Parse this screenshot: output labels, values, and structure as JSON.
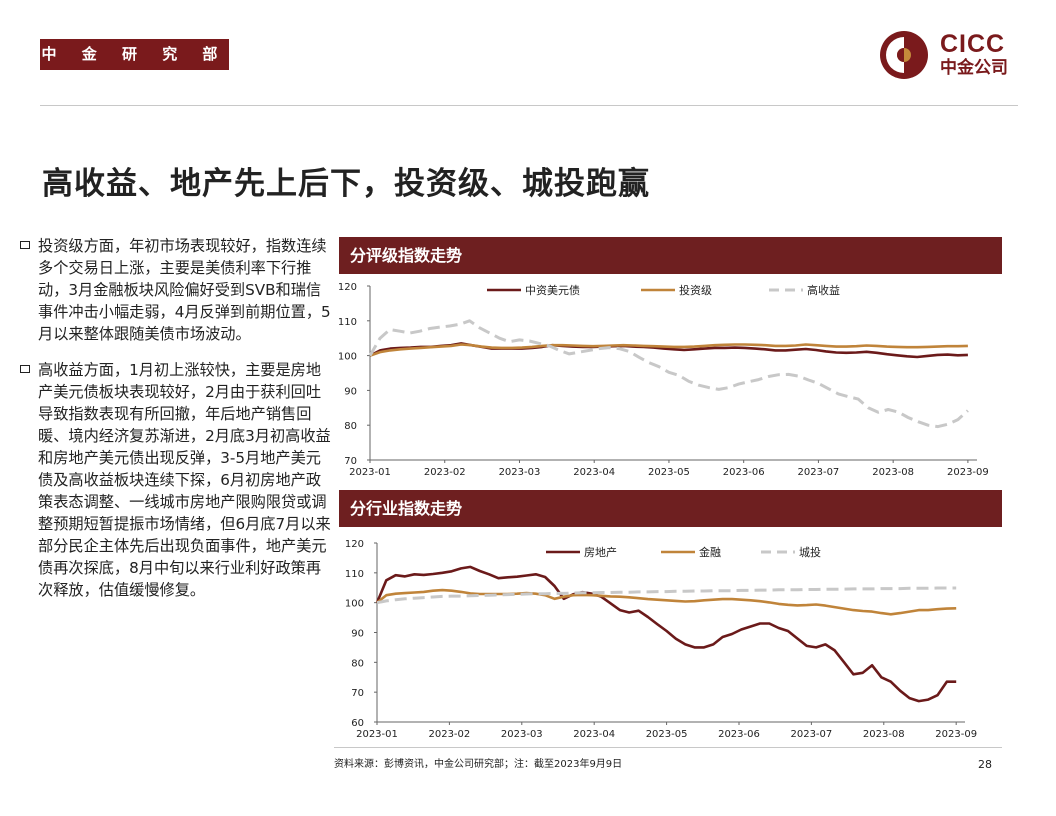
{
  "header": {
    "dept_label": "中 金 研 究 部",
    "brand_en": "CICC",
    "brand_cn": "中金公司"
  },
  "slide_title": "高收益、地产先上后下，投资级、城投跑赢",
  "bullets": [
    "投资级方面，年初市场表现较好，指数连续多个交易日上涨，主要是美债利率下行推动，3月金融板块风险偏好受到SVB和瑞信事件冲击小幅走弱，4月反弹到前期位置，5月以来整体跟随美债市场波动。",
    "高收益方面，1月初上涨较快，主要是房地产美元债板块表现较好，2月由于获利回吐导致指数表现有所回撤，年后地产销售回暖、境内经济复苏渐进，2月底3月初高收益和房地产美元债出现反弹，3-5月地产美元债及高收益板块连续下探，6月初房地产政策表态调整、一线城市房地产限购限贷或调整预期短暂提振市场情绪，但6月底7月以来部分民企主体先后出现负面事件，地产美元债再次探底，8月中旬以来行业利好政策再次释放，估值缓慢修复。"
  ],
  "panels": {
    "rating_title": "分评级指数走势",
    "industry_title": "分行业指数走势"
  },
  "chart_data": [
    {
      "type": "line",
      "x_tick_labels": [
        "2023-01",
        "2023-02",
        "2023-03",
        "2023-04",
        "2023-05",
        "2023-06",
        "2023-07",
        "2023-08",
        "2023-09"
      ],
      "ylim": [
        70,
        120
      ],
      "y_ticks": [
        70,
        80,
        90,
        100,
        110,
        120
      ],
      "legend_position": "top",
      "grid": false,
      "series": [
        {
          "name": "中资美元债",
          "color": "#6b1a1a",
          "dash": "solid",
          "values": [
            100,
            101.5,
            102,
            102.2,
            102.3,
            102.5,
            102.5,
            102.8,
            103,
            103.5,
            103,
            102.5,
            102,
            102,
            102,
            102,
            102.2,
            102.5,
            103,
            102.8,
            102.6,
            102.5,
            102.5,
            102.6,
            102.7,
            102.8,
            102.6,
            102.5,
            102.3,
            102,
            101.8,
            101.6,
            101.8,
            102,
            102.2,
            102.2,
            102.3,
            102.2,
            102,
            101.8,
            101.5,
            101.5,
            101.7,
            101.9,
            101.6,
            101.2,
            100.9,
            100.8,
            100.9,
            101.1,
            100.8,
            100.4,
            100.1,
            99.8,
            99.6,
            99.9,
            100.2,
            100.3,
            100.1,
            100.2
          ]
        },
        {
          "name": "投资级",
          "color": "#c0843a",
          "dash": "solid",
          "values": [
            100,
            101,
            101.5,
            101.8,
            102,
            102.2,
            102.4,
            102.6,
            102.8,
            103.2,
            103,
            102.6,
            102.3,
            102.2,
            102.2,
            102.3,
            102.5,
            102.8,
            103,
            103,
            102.9,
            102.8,
            102.7,
            102.8,
            102.9,
            103,
            102.9,
            102.8,
            102.7,
            102.6,
            102.5,
            102.5,
            102.6,
            102.8,
            103,
            103.1,
            103.2,
            103.2,
            103.1,
            103,
            102.8,
            102.8,
            102.9,
            103.2,
            103,
            102.8,
            102.6,
            102.6,
            102.7,
            102.9,
            102.8,
            102.6,
            102.5,
            102.4,
            102.4,
            102.5,
            102.6,
            102.7,
            102.7,
            102.8
          ]
        },
        {
          "name": "高收益",
          "color": "#c8c8c8",
          "dash": "dashed",
          "values": [
            100,
            105,
            107.5,
            107,
            106.5,
            107,
            107.8,
            108.2,
            108.5,
            109,
            110,
            108,
            106.5,
            105,
            104,
            104.5,
            104.2,
            103.5,
            102.8,
            101.5,
            100.5,
            101,
            101.5,
            102,
            102.3,
            102,
            101.2,
            99.5,
            98,
            96.8,
            95.2,
            94.3,
            92.6,
            91.5,
            90.8,
            90.3,
            90.8,
            91.8,
            92.5,
            93.1,
            94,
            94.5,
            94.6,
            94.1,
            93,
            92,
            90.5,
            89,
            88.2,
            87.5,
            85,
            83.7,
            84.5,
            83.8,
            82.2,
            81,
            80,
            79.6,
            80.3,
            81.6,
            84.2
          ]
        }
      ]
    },
    {
      "type": "line",
      "x_tick_labels": [
        "2023-01",
        "2023-02",
        "2023-03",
        "2023-04",
        "2023-05",
        "2023-06",
        "2023-07",
        "2023-08",
        "2023-09"
      ],
      "ylim": [
        60,
        120
      ],
      "y_ticks": [
        60,
        70,
        80,
        90,
        100,
        110,
        120
      ],
      "legend_position": "top",
      "grid": false,
      "series": [
        {
          "name": "房地产",
          "color": "#6b1a1a",
          "dash": "solid",
          "values": [
            100,
            107.5,
            109.2,
            108.8,
            109.5,
            109.3,
            109.6,
            110,
            110.5,
            111.5,
            112,
            110.6,
            109.5,
            108.2,
            108.5,
            108.7,
            109.1,
            109.5,
            108.6,
            105.6,
            101.3,
            102.8,
            103.5,
            103,
            102,
            99.8,
            97.5,
            96.7,
            97.3,
            95.2,
            92.8,
            90.5,
            87.9,
            86,
            85,
            85,
            86,
            88.5,
            89.5,
            91,
            92,
            93,
            93,
            91.5,
            90.5,
            88,
            85.5,
            85,
            86,
            84,
            80,
            76,
            76.5,
            79,
            75,
            73.5,
            70.5,
            68,
            67,
            67.5,
            69,
            73.5,
            73.5
          ]
        },
        {
          "name": "金融",
          "color": "#c0843a",
          "dash": "solid",
          "values": [
            100,
            102.5,
            103,
            103.2,
            103.4,
            103.6,
            104,
            104.2,
            104,
            103.6,
            103.1,
            102.9,
            102.9,
            102.9,
            102.9,
            103,
            103.2,
            103,
            102.5,
            101.3,
            102,
            102.5,
            102.6,
            102.5,
            102.3,
            102.1,
            102,
            101.8,
            101.5,
            101.2,
            101,
            100.8,
            100.6,
            100.4,
            100.5,
            100.8,
            101,
            101.2,
            101.2,
            101,
            100.8,
            100.5,
            100.1,
            99.6,
            99.3,
            99.1,
            99.2,
            99.4,
            99,
            98.5,
            98,
            97.5,
            97.2,
            97,
            96.5,
            96.1,
            96.5,
            97,
            97.5,
            97.5,
            97.8,
            98,
            98.1
          ]
        },
        {
          "name": "城投",
          "color": "#c8c8c8",
          "dash": "dashed",
          "values": [
            100,
            100.6,
            101,
            101.3,
            101.5,
            101.7,
            101.9,
            102.1,
            102.2,
            102.2,
            102.3,
            102.4,
            102.5,
            102.6,
            102.7,
            102.8,
            102.9,
            103,
            103,
            103.1,
            103.1,
            103.2,
            103.3,
            103.3,
            103.4,
            103.4,
            103.5,
            103.5,
            103.6,
            103.6,
            103.7,
            103.7,
            103.8,
            103.8,
            103.9,
            103.9,
            104,
            104,
            104,
            104.1,
            104.1,
            104.2,
            104.2,
            104.3,
            104.3,
            104.3,
            104.4,
            104.4,
            104.5,
            104.5,
            104.5,
            104.6,
            104.6,
            104.6,
            104.7,
            104.7,
            104.7,
            104.8,
            104.8,
            104.8,
            104.9,
            104.9,
            104.9
          ]
        }
      ]
    }
  ],
  "footer": {
    "source": "资料来源：彭博资讯，中金公司研究部；注：截至2023年9月9日",
    "page_number": "28"
  }
}
